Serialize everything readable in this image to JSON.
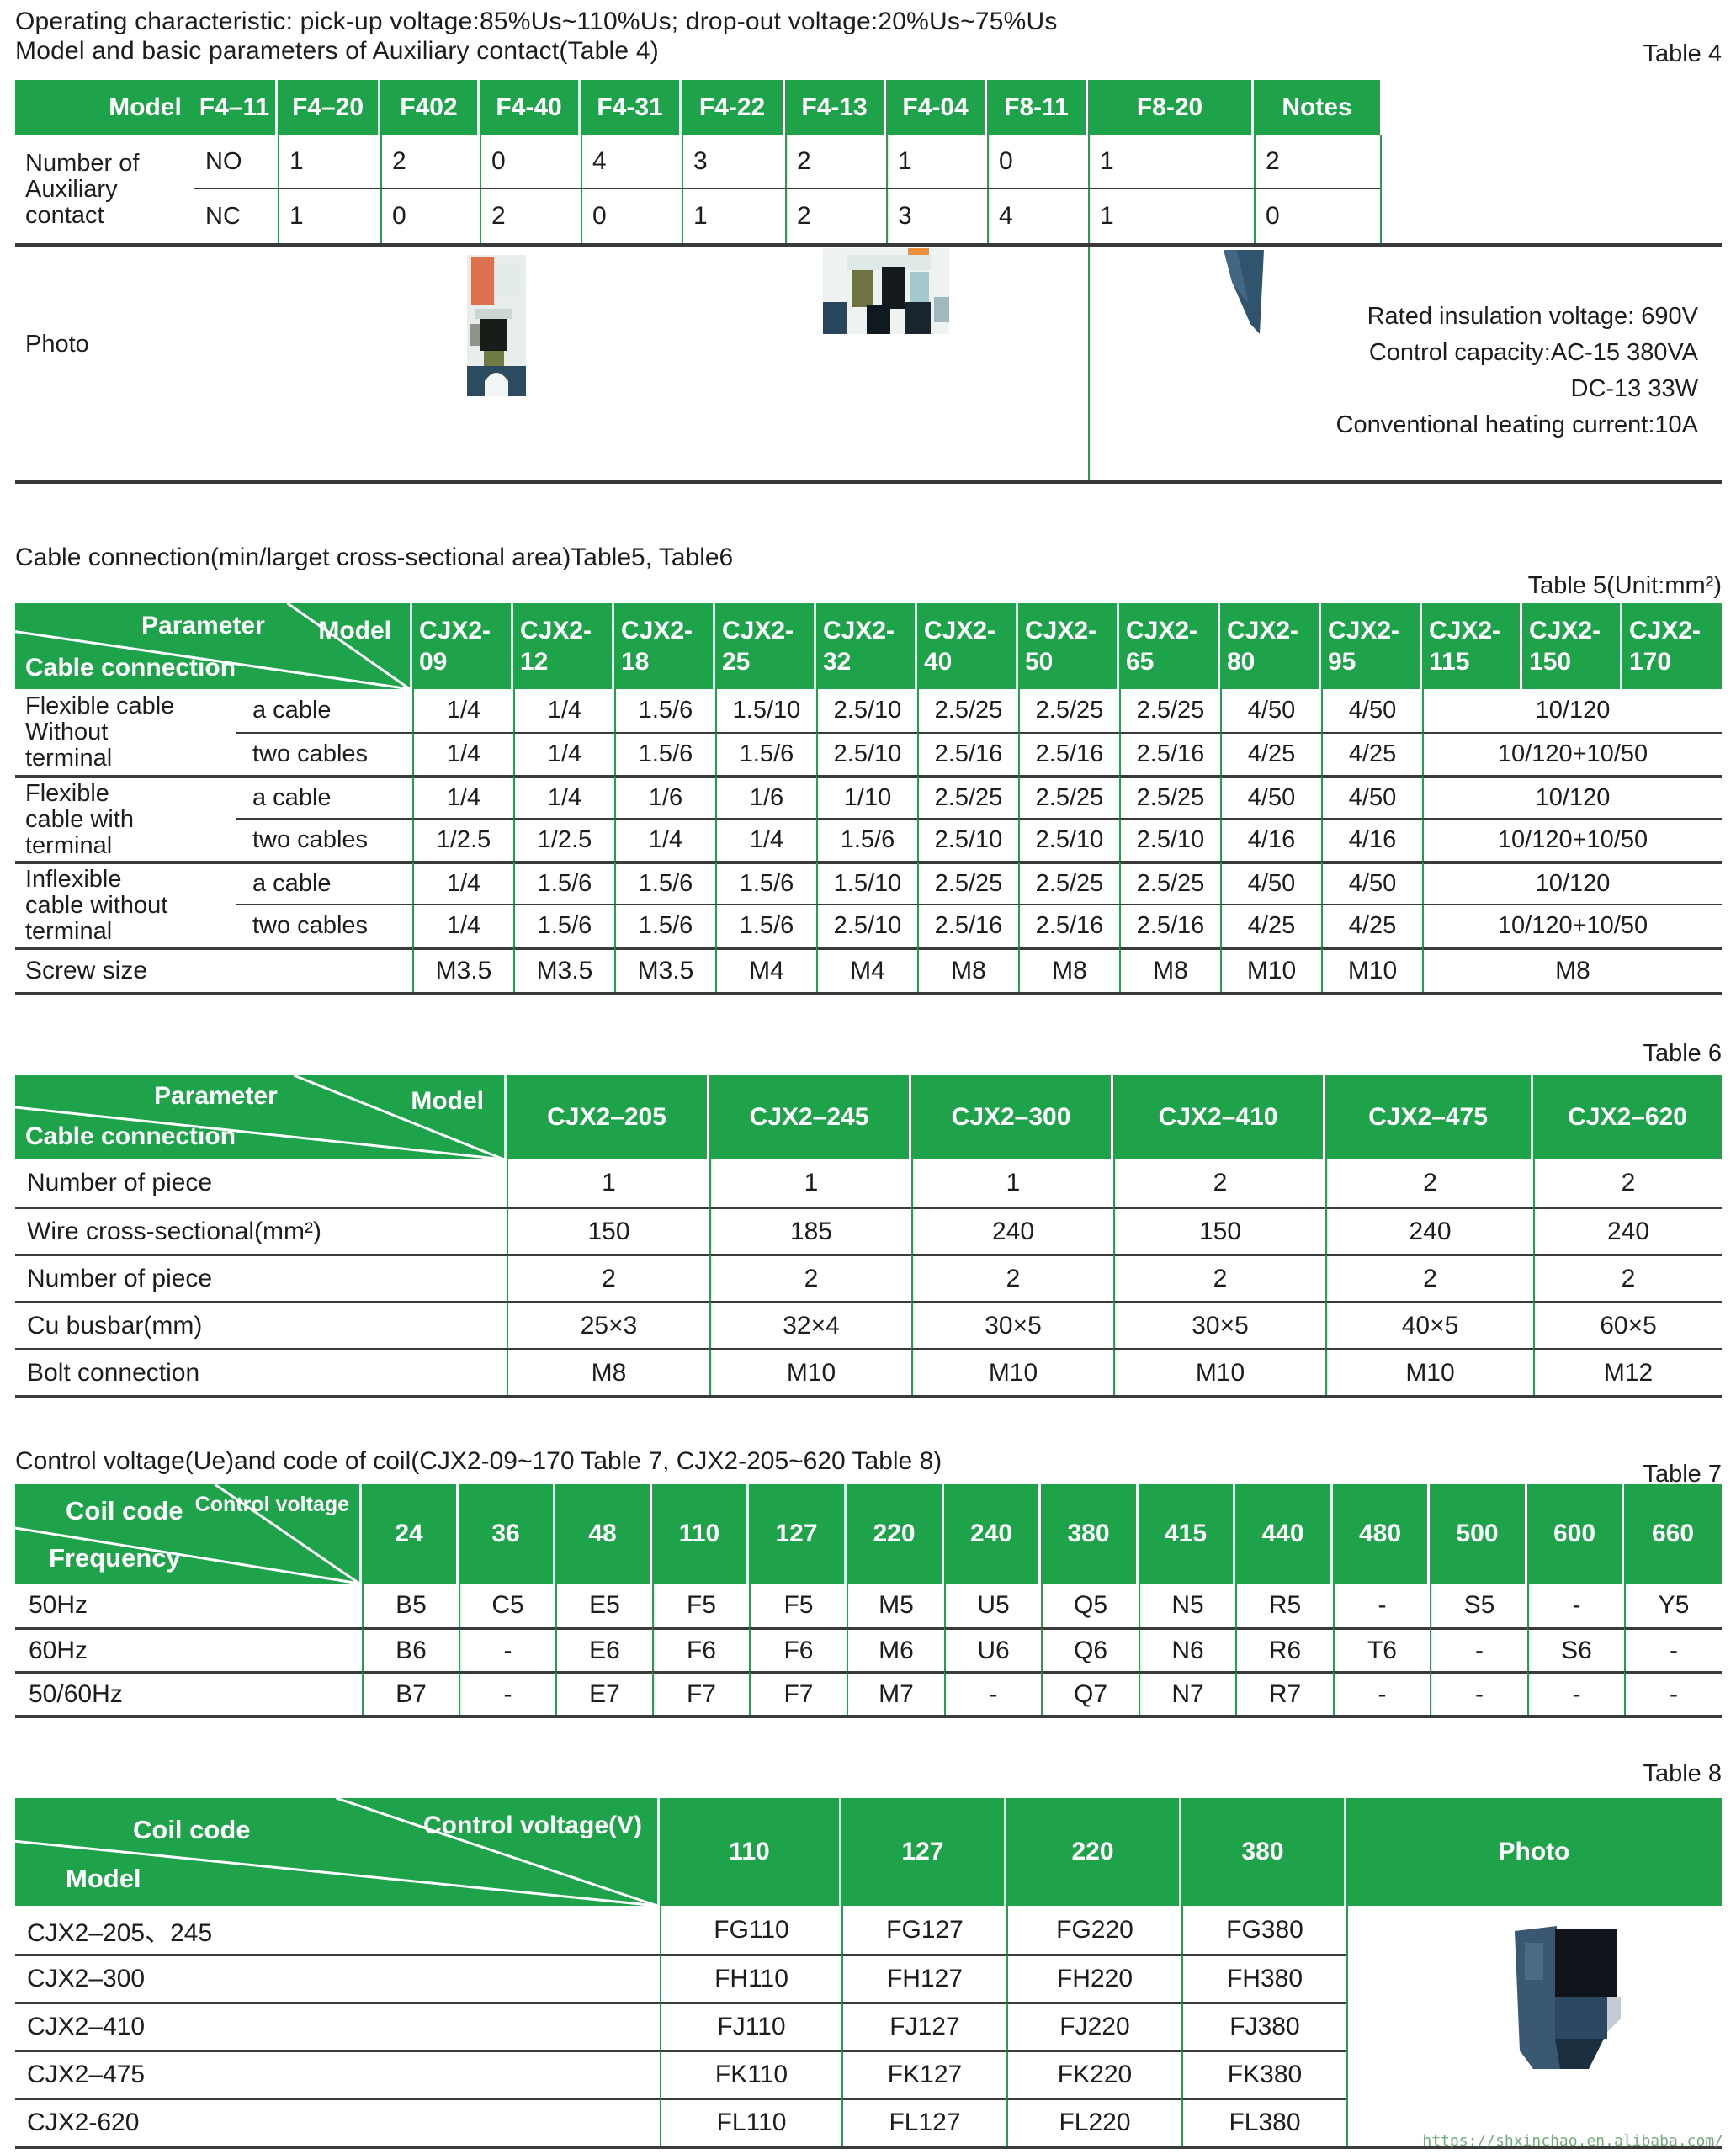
{
  "colors": {
    "green": "#1ea24a",
    "line_dark": "#3a3a3a",
    "text": "#1d1d1d",
    "watermark": "#74ab7c"
  },
  "intro": {
    "line1": "Operating characteristic: pick-up voltage:85%Us~110%Us; drop-out voltage:20%Us~75%Us",
    "line2": "Model and basic parameters of Auxiliary contact(Table 4)"
  },
  "watermark": "https://shxinchao.en.alibaba.com/",
  "table4": {
    "label": "Table 4",
    "columns": [
      "Model",
      "F4–11",
      "F4–20",
      "F402",
      "F4-40",
      "F4-31",
      "F4-22",
      "F4-13",
      "F4-04",
      "F8-11",
      "F8-20",
      "Notes"
    ],
    "row_header_lines": [
      "Number of",
      "Auxiliary",
      "contact"
    ],
    "rows": [
      {
        "label": "NO",
        "values": [
          "1",
          "2",
          "0",
          "4",
          "3",
          "2",
          "1",
          "0",
          "1",
          "2"
        ]
      },
      {
        "label": "NC",
        "values": [
          "1",
          "0",
          "2",
          "0",
          "1",
          "2",
          "3",
          "4",
          "1",
          "0"
        ]
      }
    ],
    "photo_label": "Photo",
    "photos": [
      "contactor-front-photo",
      "contactor-4pole-photo",
      "contactor-side-photo"
    ],
    "notes_lines": [
      "Rated insulation voltage: 690V",
      "Control capacity:AC-15 380VA",
      "DC-13 33W",
      "Conventional heating current:10A"
    ]
  },
  "section_cable": {
    "title": "Cable connection(min/larget cross-sectional area)Table5, Table6"
  },
  "table5": {
    "label": "Table 5(Unit:mm²)",
    "corner": {
      "top": "Parameter",
      "right": "Model",
      "bottom": "Cable connection"
    },
    "column_prefix": "CJX2-",
    "column_numbers": [
      "09",
      "12",
      "18",
      "25",
      "32",
      "40",
      "50",
      "65",
      "80",
      "95",
      "115",
      "150",
      "170"
    ],
    "groups": [
      {
        "label_lines": [
          "Flexible cable",
          "Without",
          "terminal"
        ],
        "rows": [
          {
            "label": "a cable",
            "values": [
              "1/4",
              "1/4",
              "1.5/6",
              "1.5/10",
              "2.5/10",
              "2.5/25",
              "2.5/25",
              "2.5/25",
              "4/50",
              "4/50"
            ],
            "merged": "10/120"
          },
          {
            "label": "two cables",
            "values": [
              "1/4",
              "1/4",
              "1.5/6",
              "1.5/6",
              "2.5/10",
              "2.5/16",
              "2.5/16",
              "2.5/16",
              "4/25",
              "4/25"
            ],
            "merged": "10/120+10/50"
          }
        ]
      },
      {
        "label_lines": [
          "Flexible",
          "cable with",
          "terminal"
        ],
        "rows": [
          {
            "label": "a cable",
            "values": [
              "1/4",
              "1/4",
              "1/6",
              "1/6",
              "1/10",
              "2.5/25",
              "2.5/25",
              "2.5/25",
              "4/50",
              "4/50"
            ],
            "merged": "10/120"
          },
          {
            "label": "two cables",
            "values": [
              "1/2.5",
              "1/2.5",
              "1/4",
              "1/4",
              "1.5/6",
              "2.5/10",
              "2.5/10",
              "2.5/10",
              "4/16",
              "4/16"
            ],
            "merged": "10/120+10/50"
          }
        ]
      },
      {
        "label_lines": [
          "Inflexible",
          "cable without",
          "terminal"
        ],
        "rows": [
          {
            "label": "a cable",
            "values": [
              "1/4",
              "1.5/6",
              "1.5/6",
              "1.5/6",
              "1.5/10",
              "2.5/25",
              "2.5/25",
              "2.5/25",
              "4/50",
              "4/50"
            ],
            "merged": "10/120"
          },
          {
            "label": "two cables",
            "values": [
              "1/4",
              "1.5/6",
              "1.5/6",
              "1.5/6",
              "2.5/10",
              "2.5/16",
              "2.5/16",
              "2.5/16",
              "4/25",
              "4/25"
            ],
            "merged": "10/120+10/50"
          }
        ]
      }
    ],
    "screw_row": {
      "label": "Screw size",
      "values": [
        "M3.5",
        "M3.5",
        "M3.5",
        "M4",
        "M4",
        "M8",
        "M8",
        "M8",
        "M10",
        "M10"
      ],
      "merged": "M8"
    }
  },
  "table6": {
    "label": "Table 6",
    "corner": {
      "top": "Parameter",
      "right": "Model",
      "bottom": "Cable connection"
    },
    "columns": [
      "CJX2–205",
      "CJX2–245",
      "CJX2–300",
      "CJX2–410",
      "CJX2–475",
      "CJX2–620"
    ],
    "rows": [
      {
        "label": "Number of piece",
        "values": [
          "1",
          "1",
          "1",
          "2",
          "2",
          "2"
        ]
      },
      {
        "label": "Wire cross-sectional(mm²)",
        "values": [
          "150",
          "185",
          "240",
          "150",
          "240",
          "240"
        ]
      },
      {
        "label": "Number of piece",
        "values": [
          "2",
          "2",
          "2",
          "2",
          "2",
          "2"
        ]
      },
      {
        "label": "Cu busbar(mm)",
        "values": [
          "25×3",
          "32×4",
          "30×5",
          "30×5",
          "40×5",
          "60×5"
        ]
      },
      {
        "label": "Bolt connection",
        "values": [
          "M8",
          "M10",
          "M10",
          "M10",
          "M10",
          "M12"
        ]
      }
    ]
  },
  "section_coil": {
    "title": "Control voltage(Ue)and code of coil(CJX2-09~170 Table 7, CJX2-205~620 Table 8)"
  },
  "table7": {
    "label": "Table 7",
    "corner": {
      "top": "Coil code",
      "right": "Control voltage",
      "bottom": "Frequency"
    },
    "columns": [
      "24",
      "36",
      "48",
      "110",
      "127",
      "220",
      "240",
      "380",
      "415",
      "440",
      "480",
      "500",
      "600",
      "660"
    ],
    "rows": [
      {
        "label": "50Hz",
        "values": [
          "B5",
          "C5",
          "E5",
          "F5",
          "F5",
          "M5",
          "U5",
          "Q5",
          "N5",
          "R5",
          "-",
          "S5",
          "-",
          "Y5"
        ]
      },
      {
        "label": "60Hz",
        "values": [
          "B6",
          "-",
          "E6",
          "F6",
          "F6",
          "M6",
          "U6",
          "Q6",
          "N6",
          "R6",
          "T6",
          "-",
          "S6",
          "-"
        ]
      },
      {
        "label": "50/60Hz",
        "values": [
          "B7",
          "-",
          "E7",
          "F7",
          "F7",
          "M7",
          "-",
          "Q7",
          "N7",
          "R7",
          "-",
          "-",
          "-",
          "-"
        ]
      }
    ]
  },
  "table8": {
    "label": "Table 8",
    "corner": {
      "top": "Coil code",
      "right": "Control voltage(V)",
      "bottom": "Model"
    },
    "columns": [
      "110",
      "127",
      "220",
      "380"
    ],
    "photo_column": "Photo",
    "photo_name": "contactor-large-photo",
    "rows": [
      {
        "model": "CJX2–205、245",
        "values": [
          "FG110",
          "FG127",
          "FG220",
          "FG380"
        ]
      },
      {
        "model": "CJX2–300",
        "values": [
          "FH110",
          "FH127",
          "FH220",
          "FH380"
        ]
      },
      {
        "model": "CJX2–410",
        "values": [
          "FJ110",
          "FJ127",
          "FJ220",
          "FJ380"
        ]
      },
      {
        "model": "CJX2–475",
        "values": [
          "FK110",
          "FK127",
          "FK220",
          "FK380"
        ]
      },
      {
        "model": "CJX2-620",
        "values": [
          "FL110",
          "FL127",
          "FL220",
          "FL380"
        ]
      }
    ]
  }
}
